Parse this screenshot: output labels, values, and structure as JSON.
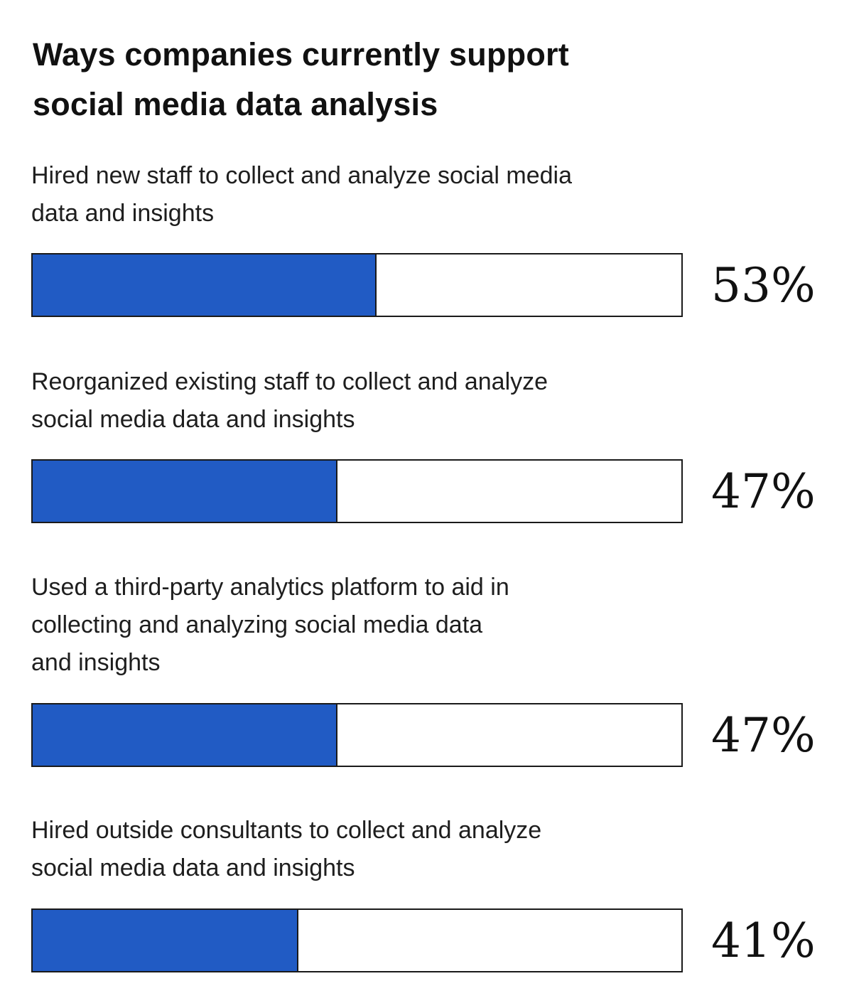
{
  "chart_data": {
    "type": "bar",
    "orientation": "horizontal",
    "title_lines": [
      "Ways companies currently support",
      "social media data analysis"
    ],
    "categories": [
      [
        "Hired new staff to collect and analyze social media",
        "data and insights"
      ],
      [
        "Reorganized existing staff to collect and analyze",
        "social media data and insights"
      ],
      [
        "Used a third-party analytics platform to aid in",
        "collecting and analyzing social media data",
        "and insights"
      ],
      [
        "Hired outside consultants to collect and analyze",
        "social media data and insights"
      ]
    ],
    "values": [
      53,
      47,
      47,
      41
    ],
    "value_labels": [
      "53%",
      "47%",
      "47%",
      "41%"
    ],
    "ylim": [
      0,
      100
    ],
    "unit": "%",
    "grid": false,
    "legend": "none",
    "colors": {
      "fill": "#215bc4",
      "track": "#ffffff",
      "border": "#1a1a1a"
    }
  }
}
